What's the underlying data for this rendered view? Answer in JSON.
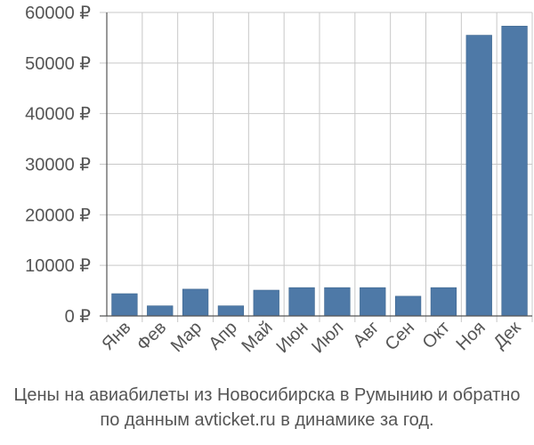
{
  "colors": {
    "bar": "#4e79a7",
    "axis": "#555555",
    "grid": "#c8c8c8",
    "text": "#555555"
  },
  "chart_data": {
    "type": "bar",
    "categories": [
      "Янв",
      "Фев",
      "Мар",
      "Апр",
      "Май",
      "Июн",
      "Июл",
      "Авг",
      "Сен",
      "Окт",
      "Ноя",
      "Дек"
    ],
    "values": [
      4400,
      2000,
      5300,
      2000,
      5100,
      5600,
      5600,
      5600,
      3900,
      5600,
      55500,
      57300
    ],
    "yticks": [
      "0 ₽",
      "10000 ₽",
      "20000 ₽",
      "30000 ₽",
      "40000 ₽",
      "50000 ₽",
      "60000 ₽"
    ],
    "ylim": [
      0,
      60000
    ],
    "grid": true,
    "caption_line1": "Цены на авиабилеты из Новосибирска в Румынию и обратно",
    "caption_line2": "по данным avticket.ru в динамике за год."
  }
}
